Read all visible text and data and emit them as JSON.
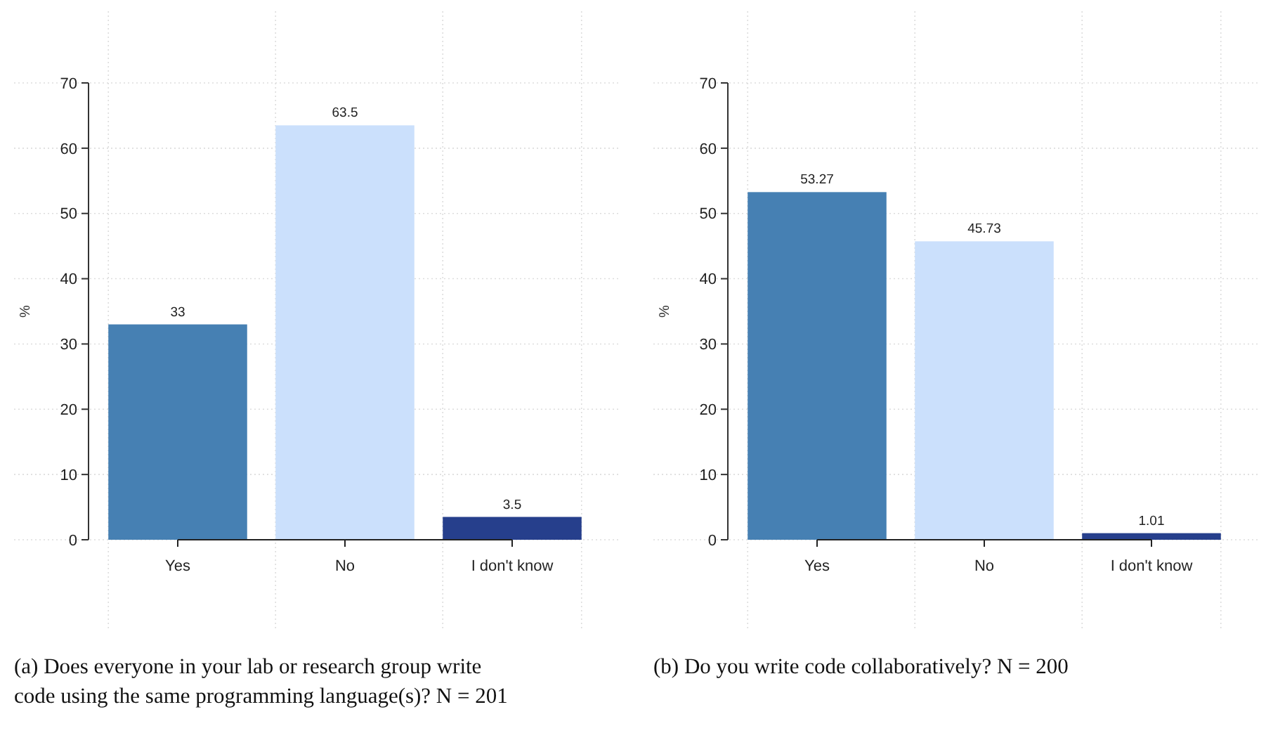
{
  "chart_data": [
    {
      "type": "bar",
      "title": "(a) Does everyone in your lab or research group write code using the same programming language(s)? N = 201",
      "ylabel": "%",
      "categories": [
        "Yes",
        "No",
        "I don't know"
      ],
      "values": [
        33,
        63.5,
        3.5
      ],
      "colors": [
        "#4680b3",
        "#cbe0fc",
        "#263f8c"
      ],
      "data_labels": true,
      "ylim": [
        0,
        70
      ],
      "yticks": [
        0,
        10,
        20,
        30,
        40,
        50,
        60,
        70
      ],
      "grid": true
    },
    {
      "type": "bar",
      "title": "(b) Do you write code collaboratively? N = 200",
      "ylabel": "%",
      "categories": [
        "Yes",
        "No",
        "I don't know"
      ],
      "values": [
        53.27,
        45.73,
        1.01
      ],
      "colors": [
        "#4680b3",
        "#cbe0fc",
        "#263f8c"
      ],
      "data_labels": true,
      "ylim": [
        0,
        70
      ],
      "yticks": [
        0,
        10,
        20,
        30,
        40,
        50,
        60,
        70
      ],
      "grid": true
    }
  ]
}
